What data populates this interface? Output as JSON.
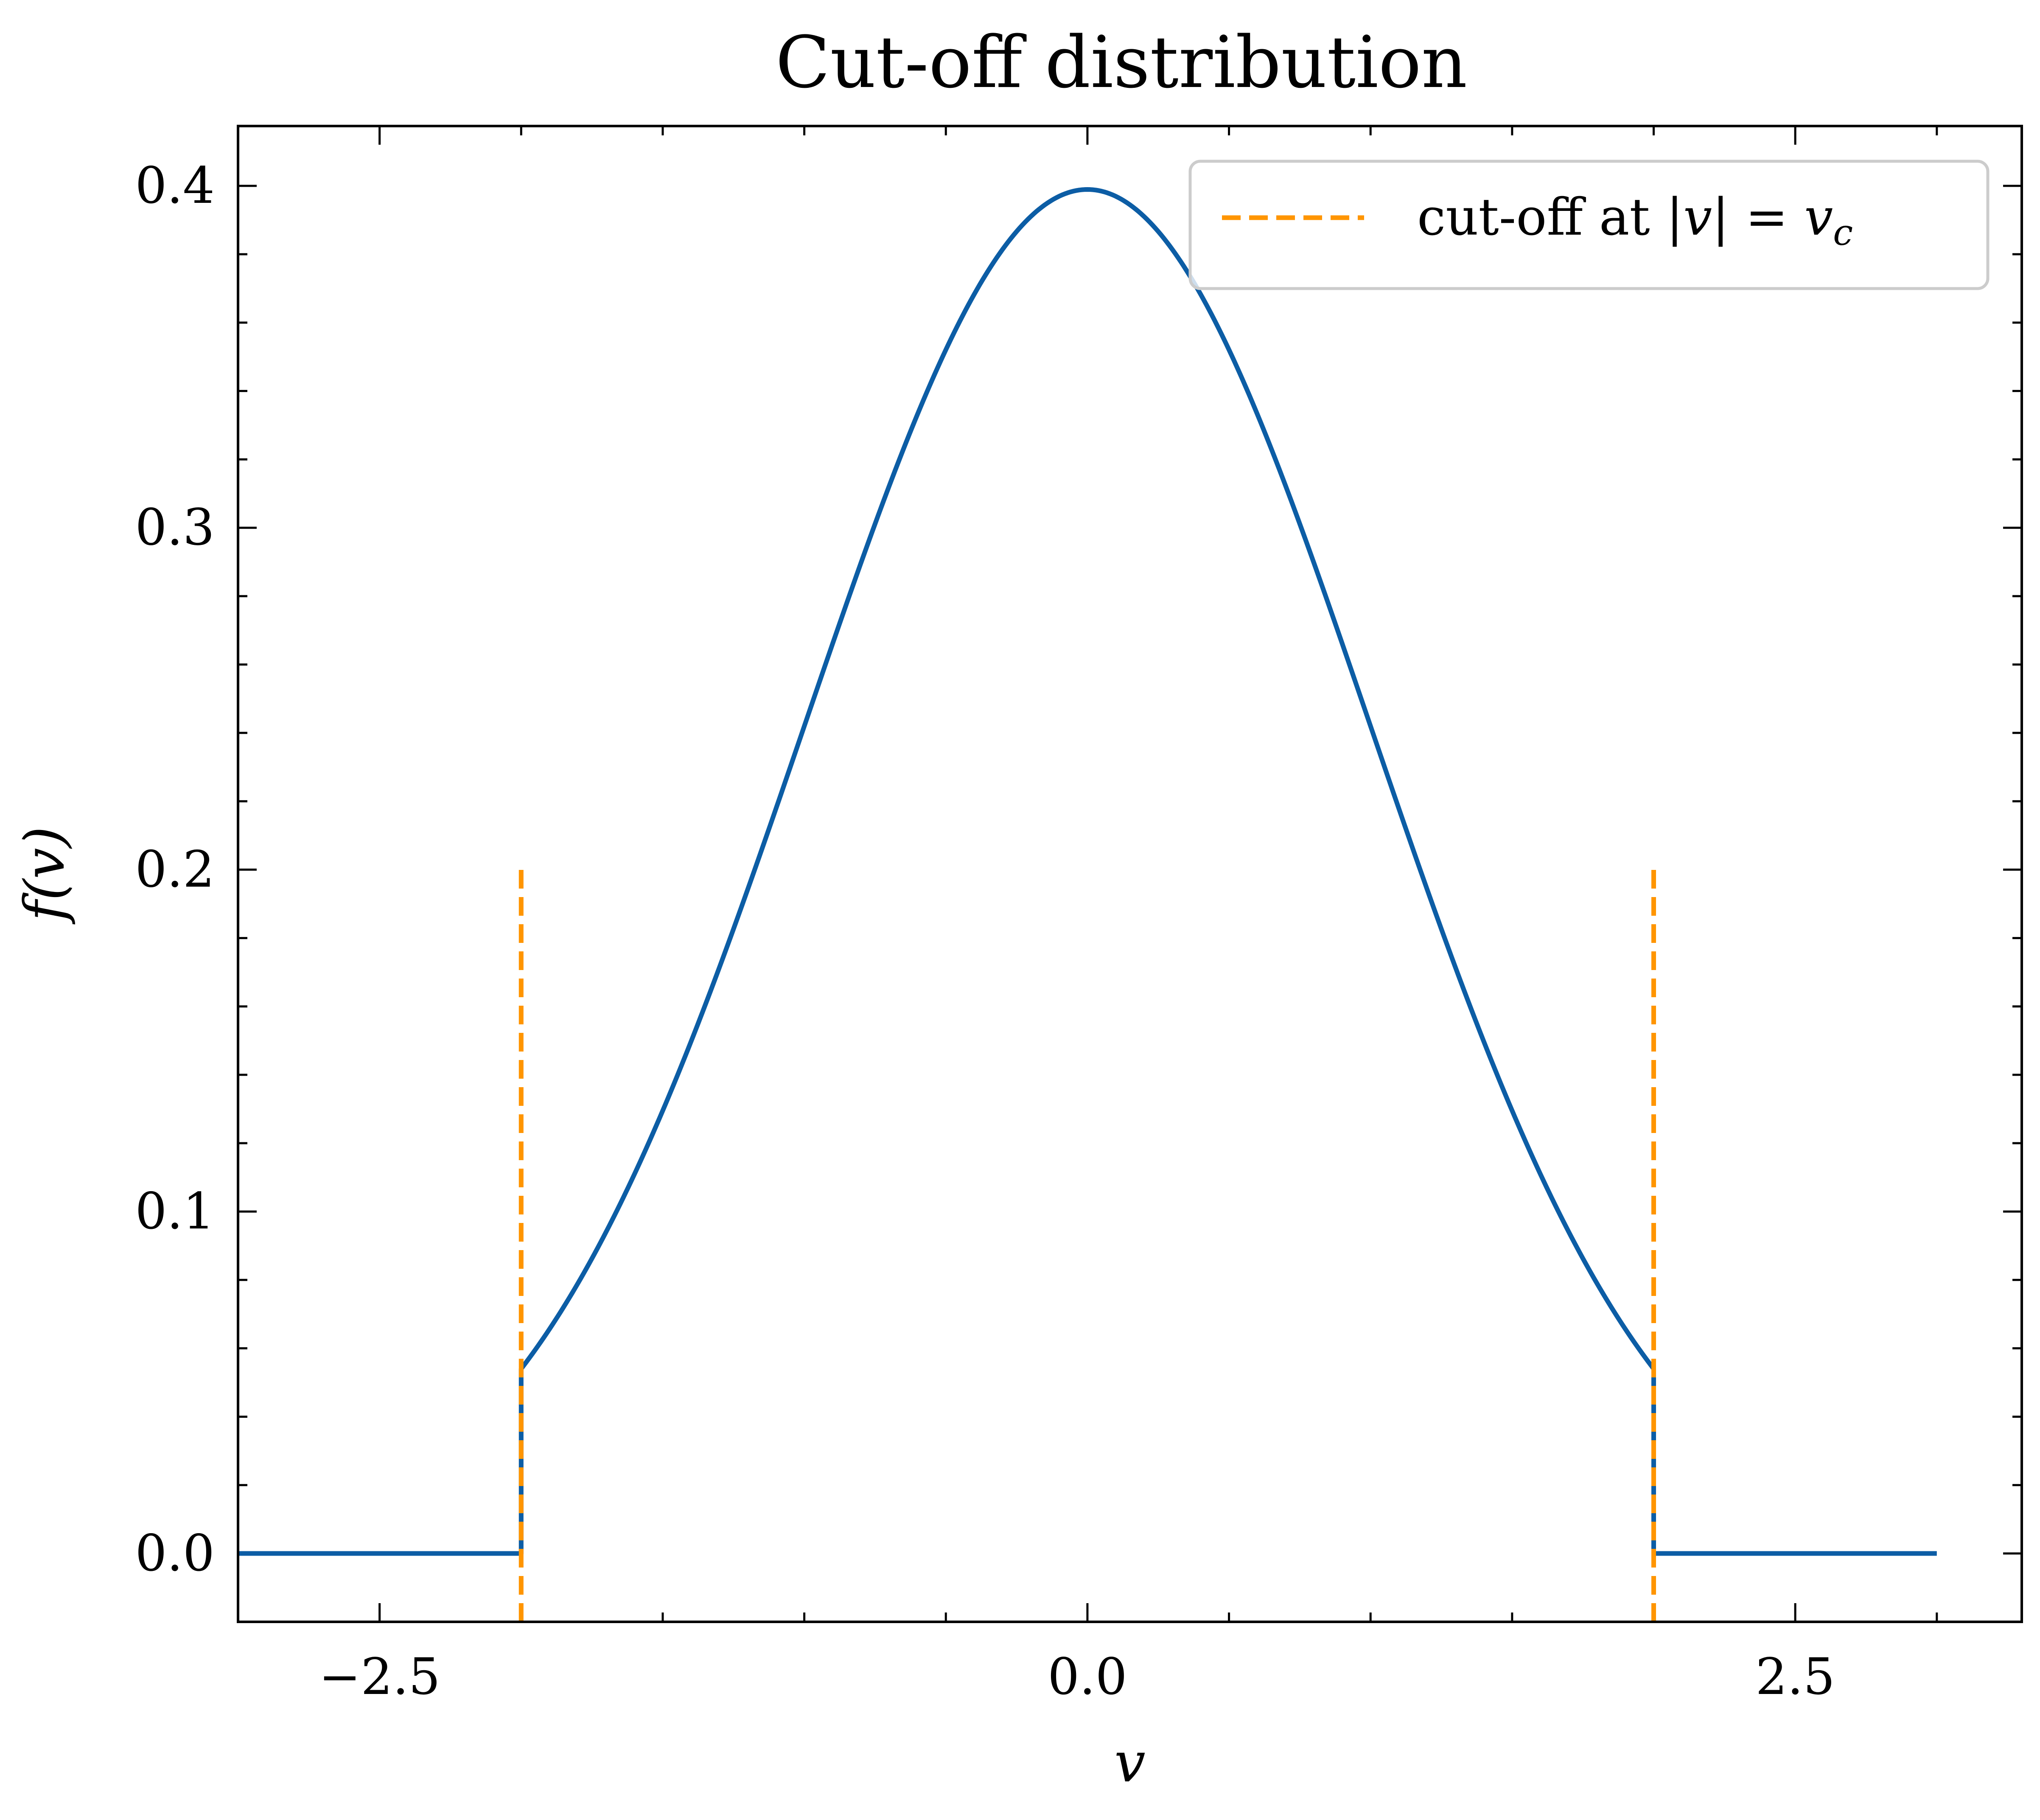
{
  "chart_data": {
    "type": "line",
    "title": "Cut-off distribution",
    "xlabel": "v",
    "ylabel": "f(v)",
    "xlim": [
      -3.0,
      3.3
    ],
    "ylim": [
      -0.02,
      0.4175
    ],
    "xticks": [
      -2.5,
      0.0,
      2.5
    ],
    "xtick_labels": [
      "−2.5",
      "0.0",
      "2.5"
    ],
    "xminor_step": 0.5,
    "yticks": [
      0.0,
      0.1,
      0.2,
      0.3,
      0.4
    ],
    "ytick_labels": [
      "0.0",
      "0.1",
      "0.2",
      "0.3",
      "0.4"
    ],
    "yminor_step": 0.02,
    "grid": false,
    "legend_position": "top-right",
    "series": [
      {
        "name": "f(v)",
        "color": "#0C5DA5",
        "style": "solid",
        "description": "Standard normal pdf truncated at |v| = v_c, zero elsewhere",
        "x_range": [
          -3.0,
          3.0
        ],
        "cutoff_vc": 2.0,
        "peak_value": 0.3989,
        "value_at_cutoff": 0.054
      },
      {
        "name": "cut-off at |v| = v_c",
        "color": "#FF9500",
        "style": "dashed",
        "x": [
          -2.0,
          2.0
        ],
        "y_range": [
          -0.02,
          0.2
        ]
      }
    ],
    "legend": {
      "label_prefix": "cut-off at ",
      "label_math": "|v| = v",
      "label_subscript": "c"
    }
  }
}
